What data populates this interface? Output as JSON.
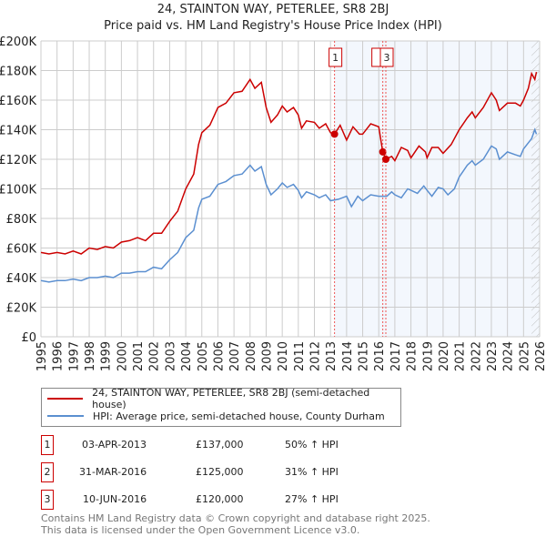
{
  "title_line1": "24, STAINTON WAY, PETERLEE, SR8 2BJ",
  "title_line2": "Price paid vs. HM Land Registry's House Price Index (HPI)",
  "chart_data": {
    "type": "line",
    "title": "24, STAINTON WAY, PETERLEE, SR8 2BJ — Price paid vs. HM Land Registry's House Price Index (HPI)",
    "xlim": [
      1995,
      2026
    ],
    "ylim": [
      0,
      200000
    ],
    "x_ticks": [
      "1995",
      "1996",
      "1997",
      "1998",
      "1999",
      "2000",
      "2001",
      "2002",
      "2003",
      "2004",
      "2005",
      "2006",
      "2007",
      "2008",
      "2009",
      "2010",
      "2011",
      "2012",
      "2013",
      "2014",
      "2015",
      "2016",
      "2017",
      "2018",
      "2019",
      "2020",
      "2021",
      "2022",
      "2023",
      "2024",
      "2025",
      "2026"
    ],
    "y_ticks": [
      {
        "value": 0,
        "label": "£0"
      },
      {
        "value": 20000,
        "label": "£20K"
      },
      {
        "value": 40000,
        "label": "£40K"
      },
      {
        "value": 60000,
        "label": "£60K"
      },
      {
        "value": 80000,
        "label": "£80K"
      },
      {
        "value": 100000,
        "label": "£100K"
      },
      {
        "value": 120000,
        "label": "£120K"
      },
      {
        "value": 140000,
        "label": "£140K"
      },
      {
        "value": 160000,
        "label": "£160K"
      },
      {
        "value": 180000,
        "label": "£180K"
      },
      {
        "value": 200000,
        "label": "£200K"
      }
    ],
    "grid": true,
    "shaded_from": 2013.25,
    "hatched_from": 2025.5,
    "series": [
      {
        "name": "24, STAINTON WAY, PETERLEE, SR8 2BJ (semi-detached house)",
        "color": "#cc0000",
        "points": [
          [
            1995,
            57
          ],
          [
            1995.5,
            56
          ],
          [
            1996,
            57
          ],
          [
            1996.5,
            56
          ],
          [
            1997,
            58
          ],
          [
            1997.5,
            56
          ],
          [
            1998,
            60
          ],
          [
            1998.5,
            59
          ],
          [
            1999,
            61
          ],
          [
            1999.5,
            60
          ],
          [
            2000,
            64
          ],
          [
            2000.5,
            65
          ],
          [
            2001,
            67
          ],
          [
            2001.5,
            65
          ],
          [
            2002,
            70
          ],
          [
            2002.5,
            70
          ],
          [
            2003,
            78
          ],
          [
            2003.5,
            85
          ],
          [
            2004,
            100
          ],
          [
            2004.5,
            110
          ],
          [
            2004.8,
            130
          ],
          [
            2005,
            138
          ],
          [
            2005.5,
            143
          ],
          [
            2006,
            155
          ],
          [
            2006.5,
            158
          ],
          [
            2007,
            165
          ],
          [
            2007.5,
            166
          ],
          [
            2008,
            174
          ],
          [
            2008.3,
            168
          ],
          [
            2008.7,
            172
          ],
          [
            2009,
            155
          ],
          [
            2009.3,
            145
          ],
          [
            2009.7,
            150
          ],
          [
            2010,
            156
          ],
          [
            2010.3,
            152
          ],
          [
            2010.7,
            155
          ],
          [
            2011,
            150
          ],
          [
            2011.2,
            141
          ],
          [
            2011.5,
            146
          ],
          [
            2012,
            145
          ],
          [
            2012.3,
            141
          ],
          [
            2012.7,
            144
          ],
          [
            2013,
            138
          ],
          [
            2013.25,
            137
          ],
          [
            2013.6,
            143
          ],
          [
            2014,
            133
          ],
          [
            2014.4,
            142
          ],
          [
            2014.8,
            137
          ],
          [
            2015,
            137
          ],
          [
            2015.5,
            144
          ],
          [
            2016,
            142
          ],
          [
            2016.25,
            125
          ],
          [
            2016.44,
            120
          ],
          [
            2016.8,
            122
          ],
          [
            2017,
            119
          ],
          [
            2017.4,
            128
          ],
          [
            2017.8,
            126
          ],
          [
            2018,
            121
          ],
          [
            2018.5,
            129
          ],
          [
            2018.9,
            125
          ],
          [
            2019,
            121
          ],
          [
            2019.3,
            128
          ],
          [
            2019.7,
            128
          ],
          [
            2020,
            124
          ],
          [
            2020.5,
            130
          ],
          [
            2021,
            140
          ],
          [
            2021.5,
            148
          ],
          [
            2021.8,
            152
          ],
          [
            2022,
            148
          ],
          [
            2022.5,
            155
          ],
          [
            2023,
            165
          ],
          [
            2023.3,
            160
          ],
          [
            2023.5,
            153
          ],
          [
            2024,
            158
          ],
          [
            2024.5,
            158
          ],
          [
            2024.8,
            156
          ],
          [
            2025,
            160
          ],
          [
            2025.3,
            168
          ],
          [
            2025.5,
            178
          ],
          [
            2025.7,
            174
          ],
          [
            2025.8,
            179
          ]
        ]
      },
      {
        "name": "HPI: Average price, semi-detached house, County Durham",
        "color": "#5b8fd0",
        "points": [
          [
            1995,
            38
          ],
          [
            1995.5,
            37
          ],
          [
            1996,
            38
          ],
          [
            1996.5,
            38
          ],
          [
            1997,
            39
          ],
          [
            1997.5,
            38
          ],
          [
            1998,
            40
          ],
          [
            1998.5,
            40
          ],
          [
            1999,
            41
          ],
          [
            1999.5,
            40
          ],
          [
            2000,
            43
          ],
          [
            2000.5,
            43
          ],
          [
            2001,
            44
          ],
          [
            2001.5,
            44
          ],
          [
            2002,
            47
          ],
          [
            2002.5,
            46
          ],
          [
            2003,
            52
          ],
          [
            2003.5,
            57
          ],
          [
            2004,
            67
          ],
          [
            2004.5,
            72
          ],
          [
            2004.8,
            87
          ],
          [
            2005,
            93
          ],
          [
            2005.5,
            95
          ],
          [
            2006,
            103
          ],
          [
            2006.5,
            105
          ],
          [
            2007,
            109
          ],
          [
            2007.5,
            110
          ],
          [
            2008,
            116
          ],
          [
            2008.3,
            112
          ],
          [
            2008.7,
            115
          ],
          [
            2009,
            103
          ],
          [
            2009.3,
            96
          ],
          [
            2009.7,
            100
          ],
          [
            2010,
            104
          ],
          [
            2010.3,
            101
          ],
          [
            2010.7,
            103
          ],
          [
            2011,
            99
          ],
          [
            2011.2,
            94
          ],
          [
            2011.5,
            98
          ],
          [
            2012,
            96
          ],
          [
            2012.3,
            94
          ],
          [
            2012.7,
            96
          ],
          [
            2013,
            92
          ],
          [
            2013.5,
            93
          ],
          [
            2014,
            95
          ],
          [
            2014.3,
            88
          ],
          [
            2014.7,
            95
          ],
          [
            2015,
            92
          ],
          [
            2015.5,
            96
          ],
          [
            2016,
            95
          ],
          [
            2016.5,
            95
          ],
          [
            2016.8,
            98
          ],
          [
            2017,
            96
          ],
          [
            2017.4,
            94
          ],
          [
            2017.8,
            100
          ],
          [
            2018,
            99
          ],
          [
            2018.4,
            97
          ],
          [
            2018.8,
            102
          ],
          [
            2019,
            99
          ],
          [
            2019.3,
            95
          ],
          [
            2019.7,
            101
          ],
          [
            2020,
            100
          ],
          [
            2020.3,
            96
          ],
          [
            2020.7,
            100
          ],
          [
            2021,
            108
          ],
          [
            2021.5,
            116
          ],
          [
            2021.8,
            119
          ],
          [
            2022,
            116
          ],
          [
            2022.5,
            120
          ],
          [
            2023,
            129
          ],
          [
            2023.3,
            127
          ],
          [
            2023.5,
            120
          ],
          [
            2024,
            125
          ],
          [
            2024.5,
            123
          ],
          [
            2024.8,
            122
          ],
          [
            2025,
            127
          ],
          [
            2025.5,
            134
          ],
          [
            2025.7,
            140
          ],
          [
            2025.8,
            137
          ]
        ]
      }
    ],
    "sales": [
      {
        "id": "1",
        "x": 2013.25,
        "value": 137000
      },
      {
        "id": "2",
        "x": 2016.25,
        "value": 125000
      },
      {
        "id": "3",
        "x": 2016.44,
        "value": 120000
      }
    ]
  },
  "legend": {
    "property": "24, STAINTON WAY, PETERLEE, SR8 2BJ (semi-detached house)",
    "hpi": "HPI: Average price, semi-detached house, County Durham"
  },
  "transactions": [
    {
      "id": "1",
      "date": "03-APR-2013",
      "price": "£137,000",
      "hpi": "50% ↑ HPI"
    },
    {
      "id": "2",
      "date": "31-MAR-2016",
      "price": "£125,000",
      "hpi": "31% ↑ HPI"
    },
    {
      "id": "3",
      "date": "10-JUN-2016",
      "price": "£120,000",
      "hpi": "27% ↑ HPI"
    }
  ],
  "footer": {
    "line1": "Contains HM Land Registry data © Crown copyright and database right 2025.",
    "line2": "This data is licensed under the Open Government Licence v3.0."
  }
}
